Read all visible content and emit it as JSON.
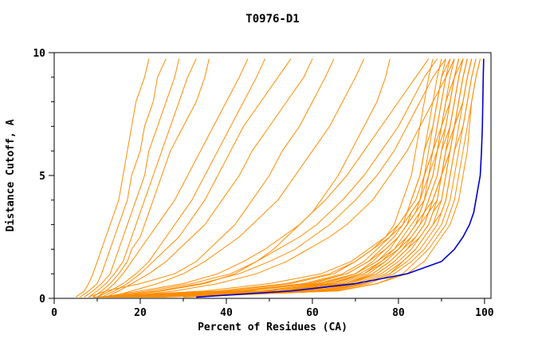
{
  "chart_data": {
    "type": "line",
    "title": "T0976-D1",
    "xlabel": "Percent of Residues (CA)",
    "ylabel": "Distance Cutoff, A",
    "axes": {
      "x": {
        "min": 0,
        "max": 101.5,
        "major_ticks": [
          0,
          20,
          40,
          60,
          80,
          100
        ],
        "minor_step": 10
      },
      "y": {
        "min": 0,
        "max": 10,
        "major_ticks": [
          0,
          5,
          10
        ],
        "minor_step": 1
      }
    },
    "legend": "none",
    "grid": false,
    "colors": {
      "model": "#ff8c00",
      "highlight": "#0000cc",
      "axis": "#000000",
      "background": "#ffffff"
    },
    "y_grid": [
      0.05,
      0.3,
      0.6,
      1.0,
      1.5,
      2.0,
      2.5,
      3.0,
      3.5,
      4.0,
      5.0,
      6.0,
      7.0,
      8.0,
      9.0,
      9.75
    ],
    "series_orange": [
      [
        5,
        7,
        8,
        9,
        10,
        11,
        12,
        13,
        14,
        15,
        16,
        17,
        18,
        19,
        21,
        22
      ],
      [
        6,
        8,
        10,
        11,
        12,
        13,
        14,
        15,
        16,
        17,
        18,
        20,
        21,
        23,
        24,
        26
      ],
      [
        7,
        9,
        11,
        13,
        14,
        15,
        16,
        17,
        18,
        19,
        21,
        22,
        24,
        26,
        28,
        29
      ],
      [
        8,
        10,
        12,
        14,
        16,
        17,
        18,
        19,
        20,
        21,
        23,
        25,
        27,
        29,
        31,
        33
      ],
      [
        9,
        11,
        13,
        15,
        17,
        18,
        20,
        21,
        22,
        23,
        25,
        27,
        30,
        33,
        35,
        36
      ],
      [
        10,
        12,
        14,
        16,
        18,
        20,
        22,
        24,
        26,
        28,
        31,
        34,
        37,
        40,
        43,
        45
      ],
      [
        10,
        13,
        16,
        19,
        22,
        24,
        26,
        28,
        30,
        32,
        35,
        38,
        41,
        44,
        47,
        49
      ],
      [
        11,
        14,
        17,
        20,
        23,
        26,
        29,
        31,
        33,
        35,
        38,
        41,
        44,
        48,
        52,
        55
      ],
      [
        12,
        15,
        18,
        22,
        26,
        29,
        32,
        35,
        37,
        39,
        43,
        46,
        50,
        54,
        58,
        60
      ],
      [
        8,
        12,
        20,
        28,
        33,
        36,
        39,
        42,
        44,
        46,
        50,
        53,
        57,
        60,
        63,
        65
      ],
      [
        13,
        18,
        24,
        30,
        35,
        39,
        43,
        46,
        49,
        52,
        56,
        60,
        64,
        67,
        70,
        72
      ],
      [
        14,
        25,
        35,
        42,
        47,
        51,
        54,
        57,
        60,
        62,
        66,
        69,
        72,
        75,
        77,
        78
      ],
      [
        11,
        20,
        30,
        38,
        44,
        49,
        53,
        57,
        60,
        63,
        68,
        72,
        76,
        80,
        84,
        87
      ],
      [
        12,
        22,
        32,
        41,
        47,
        52,
        57,
        61,
        64,
        67,
        72,
        76,
        80,
        83,
        86,
        89
      ],
      [
        13,
        24,
        34,
        43,
        50,
        56,
        60,
        64,
        67,
        70,
        75,
        79,
        82,
        85,
        88,
        91
      ],
      [
        15,
        28,
        38,
        47,
        54,
        59,
        64,
        68,
        71,
        74,
        78,
        82,
        85,
        88,
        91,
        93
      ],
      [
        10,
        40,
        55,
        65,
        70,
        74,
        77,
        79,
        80,
        81,
        83,
        84,
        85,
        86,
        87,
        88
      ],
      [
        12,
        45,
        60,
        68,
        73,
        76,
        79,
        81,
        82,
        83,
        85,
        86,
        87,
        88,
        89,
        90
      ],
      [
        14,
        50,
        63,
        70,
        75,
        78,
        80,
        82,
        84,
        85,
        86,
        87,
        88,
        89,
        90,
        91
      ],
      [
        16,
        55,
        66,
        73,
        77,
        80,
        82,
        84,
        85,
        86,
        87,
        88,
        89,
        90,
        91,
        92
      ],
      [
        11,
        42,
        58,
        67,
        72,
        75,
        78,
        80,
        82,
        83,
        85,
        86,
        88,
        89,
        90,
        92
      ],
      [
        13,
        48,
        62,
        70,
        74,
        77,
        80,
        82,
        83,
        85,
        86,
        88,
        89,
        90,
        91,
        93
      ],
      [
        15,
        52,
        64,
        72,
        76,
        79,
        81,
        83,
        85,
        86,
        88,
        89,
        90,
        91,
        92,
        93
      ],
      [
        17,
        56,
        68,
        74,
        78,
        81,
        83,
        85,
        86,
        87,
        89,
        90,
        91,
        92,
        93,
        94
      ],
      [
        18,
        58,
        69,
        75,
        79,
        82,
        84,
        86,
        87,
        88,
        90,
        91,
        92,
        93,
        94,
        95
      ],
      [
        12,
        44,
        59,
        68,
        73,
        77,
        80,
        82,
        84,
        86,
        88,
        89,
        91,
        92,
        93,
        94
      ],
      [
        10,
        38,
        54,
        64,
        70,
        74,
        78,
        81,
        83,
        85,
        87,
        89,
        90,
        92,
        93,
        95
      ],
      [
        20,
        60,
        70,
        76,
        80,
        83,
        85,
        87,
        88,
        89,
        90,
        91,
        92,
        93,
        94,
        95
      ],
      [
        22,
        62,
        72,
        78,
        81,
        84,
        86,
        88,
        89,
        90,
        91,
        92,
        93,
        94,
        95,
        96
      ],
      [
        9,
        35,
        50,
        62,
        69,
        73,
        77,
        80,
        82,
        84,
        86,
        88,
        90,
        91,
        93,
        94
      ],
      [
        19,
        57,
        67,
        74,
        78,
        81,
        84,
        86,
        87,
        89,
        90,
        92,
        93,
        94,
        95,
        96
      ],
      [
        21,
        61,
        71,
        77,
        81,
        84,
        86,
        88,
        90,
        91,
        92,
        93,
        94,
        95,
        96,
        97
      ],
      [
        16,
        54,
        65,
        72,
        77,
        80,
        83,
        85,
        87,
        88,
        90,
        91,
        93,
        94,
        95,
        96
      ],
      [
        14,
        49,
        61,
        70,
        75,
        79,
        82,
        84,
        86,
        88,
        90,
        92,
        93,
        95,
        96,
        97
      ],
      [
        23,
        64,
        73,
        79,
        83,
        86,
        88,
        90,
        91,
        92,
        93,
        94,
        95,
        96,
        97,
        98
      ],
      [
        25,
        66,
        75,
        81,
        84,
        87,
        89,
        91,
        92,
        93,
        94,
        95,
        96,
        97,
        98,
        99
      ],
      [
        30,
        65,
        75,
        82,
        86,
        88,
        90,
        92,
        93,
        94,
        95,
        96,
        96.5,
        97,
        98,
        99
      ],
      [
        17,
        53,
        64,
        71,
        76,
        80,
        82,
        84,
        86,
        87,
        89,
        90,
        92,
        93,
        94,
        95
      ],
      [
        19,
        59,
        68,
        75,
        79,
        82,
        85,
        87,
        88,
        90,
        91,
        92,
        93,
        95,
        96,
        97
      ],
      [
        24,
        63,
        72,
        78,
        82,
        85,
        87,
        89,
        90,
        91,
        92,
        93,
        95,
        96,
        97,
        98
      ]
    ],
    "series_blue": [
      33,
      55,
      70,
      82,
      90,
      93,
      95,
      96.5,
      97.5,
      98,
      99,
      99.3,
      99.5,
      99.6,
      99.7,
      99.8
    ]
  }
}
